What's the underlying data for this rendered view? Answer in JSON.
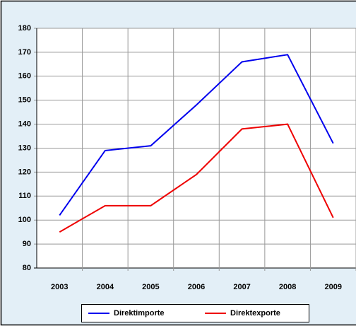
{
  "chart_data": {
    "type": "line",
    "categories": [
      "2003",
      "2004",
      "2005",
      "2006",
      "2007",
      "2008",
      "2009"
    ],
    "series": [
      {
        "name": "Direktimporte",
        "color": "#0000ee",
        "values": [
          102,
          129,
          131,
          148,
          166,
          169,
          132
        ]
      },
      {
        "name": "Direktexporte",
        "color": "#ee0000",
        "values": [
          95,
          106,
          106,
          119,
          138,
          140,
          101
        ]
      }
    ],
    "ylim": [
      80,
      180
    ],
    "yticks": [
      80,
      90,
      100,
      110,
      120,
      130,
      140,
      150,
      160,
      170,
      180
    ],
    "grid": true,
    "legend": "bottom"
  }
}
